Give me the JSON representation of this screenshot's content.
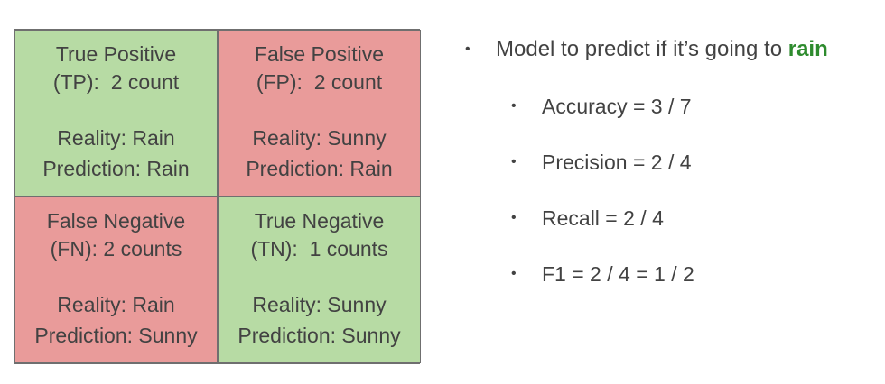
{
  "matrix": {
    "cells": [
      {
        "head1": "True Positive",
        "head2": "(TP):  2 count",
        "reality": "Reality: Rain",
        "prediction": "Prediction: Rain"
      },
      {
        "head1": "False Positive",
        "head2": "(FP):  2 count",
        "reality": "Reality: Sunny",
        "prediction": "Prediction: Rain"
      },
      {
        "head1": "False Negative",
        "head2": "(FN): 2 counts",
        "reality": "Reality: Rain",
        "prediction": "Prediction: Sunny"
      },
      {
        "head1": "True Negative",
        "head2": "(TN):  1 counts",
        "reality": "Reality: Sunny",
        "prediction": "Prediction: Sunny"
      }
    ],
    "colors": {
      "correct": "#b7dba4",
      "incorrect": "#e99b9a"
    }
  },
  "bullets": {
    "main_prefix": "Model to predict if it’s going to ",
    "main_accent": "rain",
    "accent_color": "#2e8b2e",
    "items": [
      "Accuracy = 3 / 7",
      "Precision = 2 / 4",
      "Recall = 2 / 4",
      "F1 = 2 / 4 = 1 / 2"
    ]
  }
}
